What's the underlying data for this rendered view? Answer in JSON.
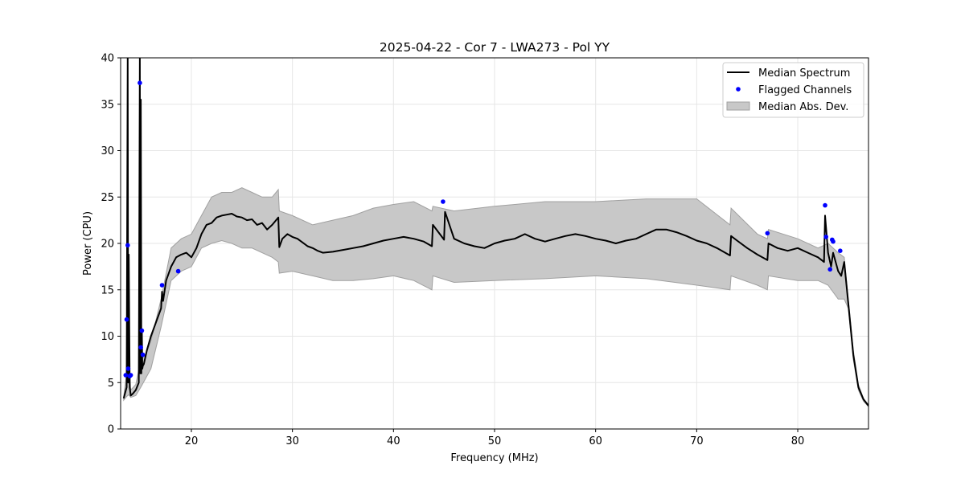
{
  "chart_data": {
    "type": "line",
    "title": "2025-04-22 - Cor 7 - LWA273 - Pol YY",
    "xlabel": "Frequency (MHz)",
    "ylabel": "Power (CPU)",
    "xlim": [
      13,
      87
    ],
    "ylim": [
      0,
      40
    ],
    "xticks": [
      20,
      30,
      40,
      50,
      60,
      70,
      80
    ],
    "yticks": [
      0,
      5,
      10,
      15,
      20,
      25,
      30,
      35,
      40
    ],
    "grid": true,
    "legend_position": "top-right",
    "legend": [
      "Median Spectrum",
      "Flagged Channels",
      "Median Abs. Dev."
    ],
    "colors": {
      "median": "#000000",
      "flagged": "#0000ff",
      "band": "#c8c8c8",
      "band_edge": "#a0a0a0",
      "grid": "#e6e6e6"
    },
    "series": [
      {
        "name": "Median Spectrum",
        "x": [
          13.3,
          13.6,
          13.7,
          13.75,
          13.8,
          13.9,
          14.0,
          14.2,
          14.5,
          14.8,
          14.9,
          14.95,
          15.0,
          15.05,
          15.1,
          15.15,
          15.2,
          15.3,
          15.6,
          16.0,
          16.5,
          17.0,
          17.1,
          17.2,
          17.5,
          18.0,
          18.5,
          19.0,
          19.5,
          20.0,
          20.5,
          21.0,
          21.5,
          22.0,
          22.5,
          23.0,
          23.5,
          24.0,
          24.5,
          25.0,
          25.5,
          26.0,
          26.5,
          27.0,
          27.5,
          28.0,
          28.6,
          28.7,
          29.0,
          29.5,
          30.0,
          30.5,
          31.0,
          31.5,
          32.0,
          32.5,
          33.0,
          34.0,
          35.0,
          36.0,
          37.0,
          38.0,
          39.0,
          40.0,
          41.0,
          42.0,
          43.0,
          43.8,
          43.9,
          45.0,
          45.1,
          46.0,
          47.0,
          48.0,
          49.0,
          50.0,
          51.0,
          52.0,
          53.0,
          54.0,
          55.0,
          56.0,
          57.0,
          58.0,
          59.0,
          60.0,
          61.0,
          62.0,
          63.0,
          64.0,
          65.0,
          66.0,
          67.0,
          68.0,
          69.0,
          70.0,
          71.0,
          72.0,
          73.3,
          73.4,
          74.0,
          75.0,
          76.0,
          77.0,
          77.1,
          78.0,
          79.0,
          80.0,
          81.0,
          82.0,
          82.6,
          82.7,
          83.0,
          83.3,
          83.5,
          84.0,
          84.3,
          84.6,
          85.0,
          85.5,
          86.0,
          86.5,
          87.0
        ],
        "values": [
          3.3,
          4.5,
          40.0,
          5.0,
          18.8,
          4.5,
          3.6,
          3.8,
          4.2,
          5.0,
          40.0,
          6.0,
          35.5,
          6.0,
          10.5,
          6.5,
          6.8,
          7.0,
          8.5,
          10.0,
          11.5,
          13.0,
          14.8,
          13.8,
          16.0,
          17.5,
          18.5,
          18.8,
          19.0,
          18.5,
          19.5,
          21.0,
          22.0,
          22.2,
          22.8,
          23.0,
          23.1,
          23.2,
          22.9,
          22.8,
          22.5,
          22.6,
          22.0,
          22.2,
          21.5,
          22.0,
          22.8,
          19.6,
          20.5,
          21.0,
          20.7,
          20.5,
          20.1,
          19.7,
          19.5,
          19.2,
          19.0,
          19.1,
          19.3,
          19.5,
          19.7,
          20.0,
          20.3,
          20.5,
          20.7,
          20.5,
          20.2,
          19.7,
          22.0,
          20.4,
          23.4,
          20.5,
          20.0,
          19.7,
          19.5,
          20.0,
          20.3,
          20.5,
          21.0,
          20.5,
          20.2,
          20.5,
          20.8,
          21.0,
          20.8,
          20.5,
          20.3,
          20.0,
          20.3,
          20.5,
          21.0,
          21.5,
          21.5,
          21.2,
          20.8,
          20.3,
          20.0,
          19.5,
          18.7,
          20.8,
          20.3,
          19.5,
          18.8,
          18.2,
          20.0,
          19.5,
          19.2,
          19.5,
          19.0,
          18.5,
          18.0,
          23.0,
          19.0,
          17.5,
          19.0,
          17.0,
          16.5,
          18.0,
          13.5,
          8.0,
          4.5,
          3.2,
          2.5
        ]
      },
      {
        "name": "Median Abs. Dev.",
        "x": [
          13.3,
          13.6,
          13.7,
          13.8,
          14.0,
          14.5,
          15.0,
          15.5,
          16.0,
          17.0,
          18.0,
          19.0,
          20.0,
          21.0,
          22.0,
          23.0,
          24.0,
          25.0,
          26.0,
          27.0,
          28.0,
          28.6,
          28.7,
          30.0,
          32.0,
          34.0,
          36.0,
          38.0,
          40.0,
          42.0,
          43.8,
          43.9,
          46.0,
          50.0,
          55.0,
          60.0,
          65.0,
          70.0,
          73.3,
          73.4,
          76.0,
          77.0,
          77.1,
          80.0,
          82.0,
          83.0,
          84.0,
          84.6,
          85.0,
          85.5,
          86.0,
          86.5,
          87.0
        ],
        "upper": [
          3.5,
          6.0,
          31.0,
          8.0,
          4.2,
          4.8,
          7.5,
          8.0,
          9.5,
          14.0,
          19.5,
          20.5,
          21.0,
          23.0,
          25.0,
          25.5,
          25.5,
          26.0,
          25.5,
          25.0,
          25.0,
          25.8,
          23.5,
          23.0,
          22.0,
          22.5,
          23.0,
          23.8,
          24.2,
          24.5,
          23.5,
          24.0,
          23.5,
          24.0,
          24.5,
          24.5,
          24.8,
          24.8,
          22.0,
          23.8,
          21.0,
          20.5,
          21.5,
          20.5,
          19.5,
          20.0,
          19.0,
          18.5,
          14.0,
          8.5,
          4.8,
          3.3,
          2.6
        ],
        "lower": [
          3.1,
          3.5,
          3.6,
          3.7,
          3.4,
          3.6,
          4.5,
          5.5,
          6.5,
          11.0,
          16.0,
          17.0,
          17.5,
          19.5,
          20.0,
          20.3,
          20.0,
          19.5,
          19.5,
          19.0,
          18.5,
          18.0,
          16.8,
          17.0,
          16.5,
          16.0,
          16.0,
          16.2,
          16.5,
          16.0,
          15.0,
          16.5,
          15.8,
          16.0,
          16.2,
          16.5,
          16.2,
          15.5,
          15.0,
          16.5,
          15.5,
          15.0,
          16.5,
          16.0,
          16.0,
          15.5,
          14.0,
          14.0,
          13.0,
          7.5,
          4.2,
          3.0,
          2.4
        ]
      }
    ],
    "flagged_channels": {
      "name": "Flagged Channels",
      "x": [
        13.5,
        13.6,
        13.7,
        13.75,
        13.9,
        14.0,
        14.9,
        15.0,
        15.1,
        15.2,
        17.1,
        18.7,
        44.9,
        77.0,
        82.7,
        82.8,
        83.2,
        83.4,
        83.5,
        84.2
      ],
      "y": [
        5.8,
        11.8,
        19.8,
        6.5,
        5.7,
        5.8,
        37.3,
        8.8,
        10.6,
        8.0,
        15.5,
        17.0,
        24.5,
        21.1,
        24.1,
        20.7,
        17.2,
        20.4,
        20.2,
        19.2
      ]
    }
  }
}
